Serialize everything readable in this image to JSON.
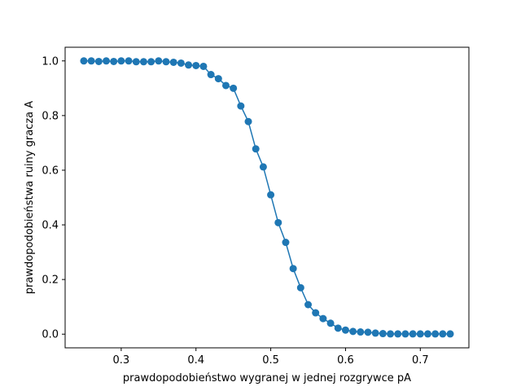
{
  "chart_data": {
    "type": "line",
    "xlabel": "prawdopodobieństwo wygranej w jednej rozgrywce pA",
    "ylabel": "prawdopodobieństwa ruiny gracza A",
    "xlim": [
      0.225,
      0.765
    ],
    "ylim": [
      -0.05,
      1.05
    ],
    "xticks": [
      0.3,
      0.4,
      0.5,
      0.6,
      0.7
    ],
    "xtick_labels": [
      "0.3",
      "0.4",
      "0.5",
      "0.6",
      "0.7"
    ],
    "yticks": [
      0.0,
      0.2,
      0.4,
      0.6,
      0.8,
      1.0
    ],
    "ytick_labels": [
      "0.0",
      "0.2",
      "0.4",
      "0.6",
      "0.8",
      "1.0"
    ],
    "grid": false,
    "markers": true,
    "color": "#1f77b4",
    "x": [
      0.25,
      0.26,
      0.27,
      0.28,
      0.29,
      0.3,
      0.31,
      0.32,
      0.33,
      0.34,
      0.35,
      0.36,
      0.37,
      0.38,
      0.39,
      0.4,
      0.41,
      0.42,
      0.43,
      0.44,
      0.45,
      0.46,
      0.47,
      0.48,
      0.49,
      0.5,
      0.51,
      0.52,
      0.53,
      0.54,
      0.55,
      0.56,
      0.57,
      0.58,
      0.59,
      0.6,
      0.61,
      0.62,
      0.63,
      0.64,
      0.65,
      0.66,
      0.67,
      0.68,
      0.69,
      0.7,
      0.71,
      0.72,
      0.73,
      0.74
    ],
    "y": [
      1.0,
      1.0,
      0.998,
      1.0,
      0.998,
      1.0,
      1.0,
      0.997,
      0.997,
      0.997,
      1.0,
      0.997,
      0.995,
      0.992,
      0.985,
      0.983,
      0.98,
      0.95,
      0.935,
      0.91,
      0.9,
      0.835,
      0.778,
      0.678,
      0.612,
      0.51,
      0.408,
      0.336,
      0.24,
      0.17,
      0.108,
      0.078,
      0.057,
      0.04,
      0.022,
      0.015,
      0.01,
      0.008,
      0.007,
      0.004,
      0.002,
      0.001,
      0.001,
      0.001,
      0.001,
      0.001,
      0.001,
      0.001,
      0.001,
      0.001
    ]
  }
}
